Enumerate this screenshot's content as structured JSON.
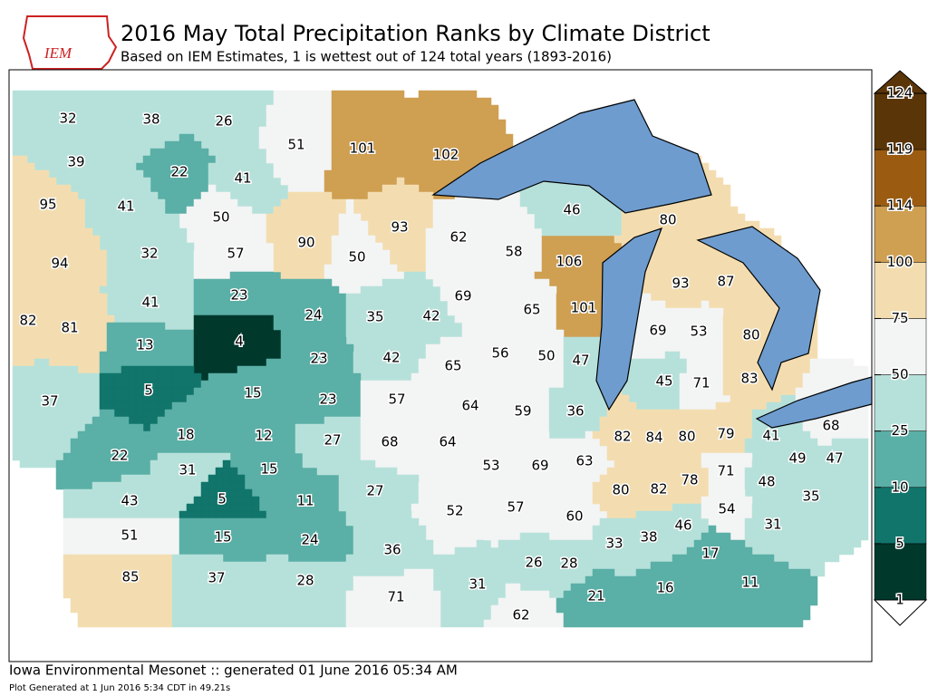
{
  "header": {
    "logo": "IEM",
    "title": "2016 May Total Precipitation Ranks by Climate District",
    "subtitle": "Based on IEM Estimates, 1 is wettest out of 124 total years (1893-2016)"
  },
  "districts": [
    32,
    38,
    26,
    39,
    22,
    41,
    95,
    41,
    50,
    94,
    32,
    57,
    41,
    23,
    82,
    81,
    13,
    4,
    37,
    5,
    15,
    18,
    12,
    22,
    31,
    15,
    43,
    5,
    11,
    51,
    15,
    24,
    85,
    37,
    28,
    51,
    101,
    102,
    90,
    93,
    50,
    24,
    35,
    42,
    23,
    42,
    65,
    23,
    57,
    64,
    27,
    68,
    64,
    27,
    52,
    36,
    31,
    71,
    62,
    58,
    106,
    69,
    65,
    101,
    56,
    50,
    47,
    59,
    36,
    53,
    69,
    63,
    57,
    60,
    26,
    28,
    62,
    46,
    80,
    93,
    87,
    69,
    53,
    80,
    45,
    71,
    83,
    82,
    84,
    80,
    80,
    82,
    78,
    33,
    38,
    46,
    79,
    41,
    68,
    71,
    49,
    47,
    48,
    35,
    54,
    31,
    21,
    16,
    17,
    11
  ],
  "colorbar": {
    "ticks": [
      1,
      5,
      10,
      25,
      50,
      75,
      100,
      114,
      119,
      124
    ],
    "colors": [
      "#00382c",
      "#11756b",
      "#5aafa6",
      "#b6e1da",
      "#f3f4f4",
      "#f3ddb0",
      "#cf9f52",
      "#9b5c12",
      "#5a3507"
    ]
  },
  "footer": {
    "line1": "Iowa Environmental Mesonet :: generated 01 June 2016 05:34 AM",
    "line2": "Plot Generated at 1 Jun 2016 5:34 CDT in 49.21s"
  }
}
